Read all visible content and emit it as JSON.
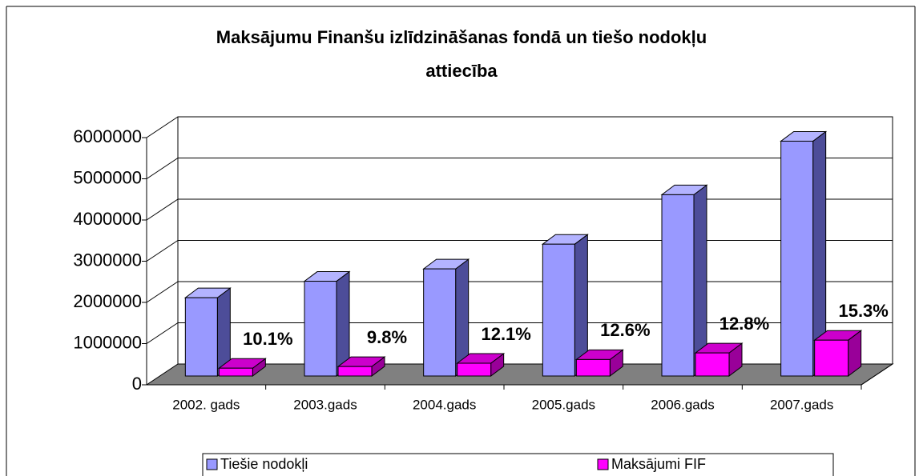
{
  "chart_data": {
    "type": "bar3d",
    "title": [
      "Maksājumu Finanšu izlīdzināšanas fondā un tiešo nodokļu",
      "attiecība"
    ],
    "categories": [
      "2002. gads",
      "2003.gads",
      "2004.gads",
      "2005.gads",
      "2006.gads",
      "2007.gads"
    ],
    "series": [
      {
        "name": "Tiešie nodokļi",
        "color": "#9999ff",
        "values": [
          1900000,
          2300000,
          2600000,
          3200000,
          4400000,
          5700000
        ]
      },
      {
        "name": "Maksājumi FIF",
        "color": "#ff00ff",
        "values": [
          190000,
          230000,
          310000,
          400000,
          560000,
          870000
        ]
      }
    ],
    "annotations": [
      "10.1%",
      "9.8%",
      "12.1%",
      "12.6%",
      "12.8%",
      "15.3%"
    ],
    "ylim": [
      0,
      6000000
    ],
    "yticks": [
      0,
      1000000,
      2000000,
      3000000,
      4000000,
      5000000,
      6000000
    ],
    "grid": true,
    "legend": "bottom"
  }
}
